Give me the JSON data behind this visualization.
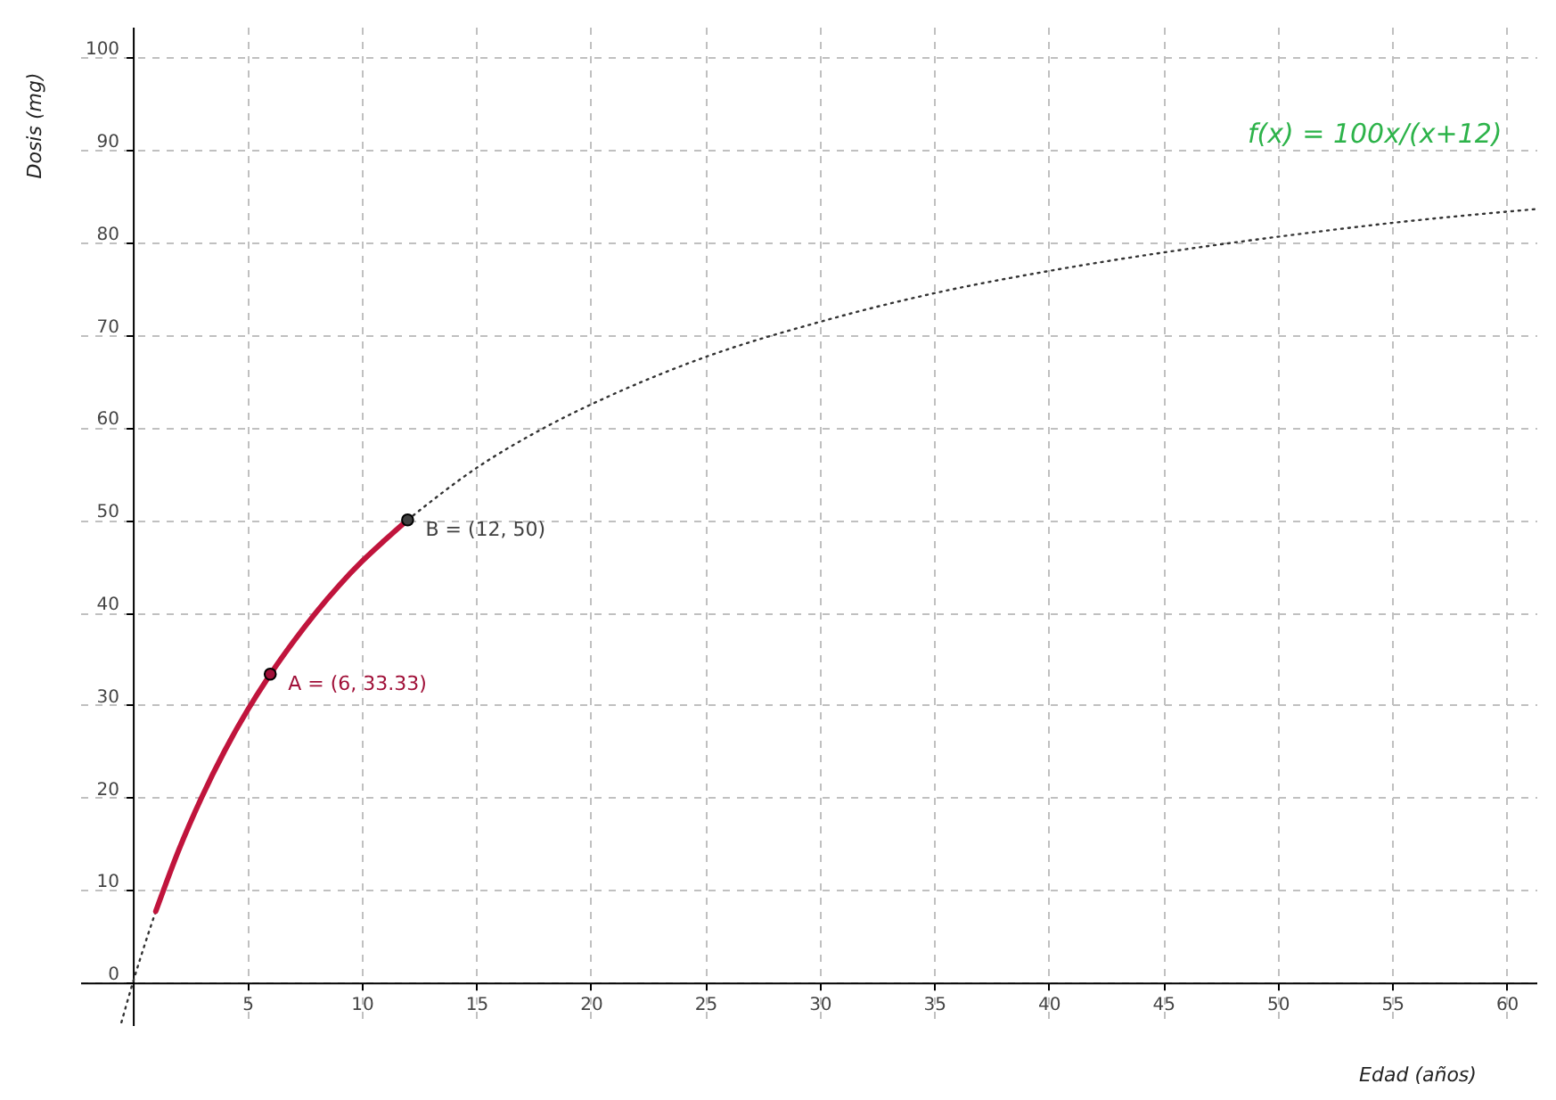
{
  "chart_data": {
    "type": "line",
    "xlabel": "Edad (años)",
    "ylabel": "Dosis  (mg)",
    "xlim": [
      -2.3,
      61.3
    ],
    "ylim": [
      -4.6,
      103.3
    ],
    "xticks": [
      5,
      10,
      15,
      20,
      25,
      30,
      35,
      40,
      45,
      50,
      55,
      60
    ],
    "yticks": [
      0,
      10,
      20,
      30,
      40,
      50,
      60,
      70,
      80,
      90,
      100
    ],
    "grid": true,
    "annotations": [
      "f(x) = 100x/(x+12)"
    ],
    "series": [
      {
        "color": "#333333",
        "line_style": "dotted",
        "marker": "none",
        "x": [
          -0.5,
          0,
          1,
          2,
          3,
          4,
          5,
          6,
          8,
          10,
          12,
          15,
          18,
          21,
          25,
          30,
          35,
          40,
          45,
          50,
          55,
          61.3
        ],
        "values": [
          -4.3,
          0,
          7.7,
          null,
          null,
          null,
          null,
          null,
          null,
          null,
          50,
          55.6,
          60,
          63.6,
          67.6,
          71.4,
          74.5,
          76.9,
          78.9,
          80.6,
          82.1,
          83.6
        ]
      },
      {
        "color": "#c0143c",
        "line_style": "solid",
        "marker": "none",
        "x": [
          1,
          2,
          3,
          4,
          5,
          6,
          7,
          8,
          9,
          10,
          11,
          12
        ],
        "values": [
          7.7,
          14.3,
          20,
          25,
          29.4,
          33.3,
          36.8,
          40,
          42.9,
          45.5,
          47.8,
          50
        ]
      },
      {
        "type": "scatter",
        "color": "#a01038",
        "marker": "circle",
        "x": [
          6
        ],
        "values": [
          33.33
        ],
        "value_labels": [
          "A = (6, 33.33)"
        ]
      },
      {
        "type": "scatter",
        "color": "#404040",
        "marker": "circle",
        "x": [
          12
        ],
        "values": [
          50
        ],
        "value_labels": [
          "B = (12, 50)"
        ]
      }
    ]
  }
}
